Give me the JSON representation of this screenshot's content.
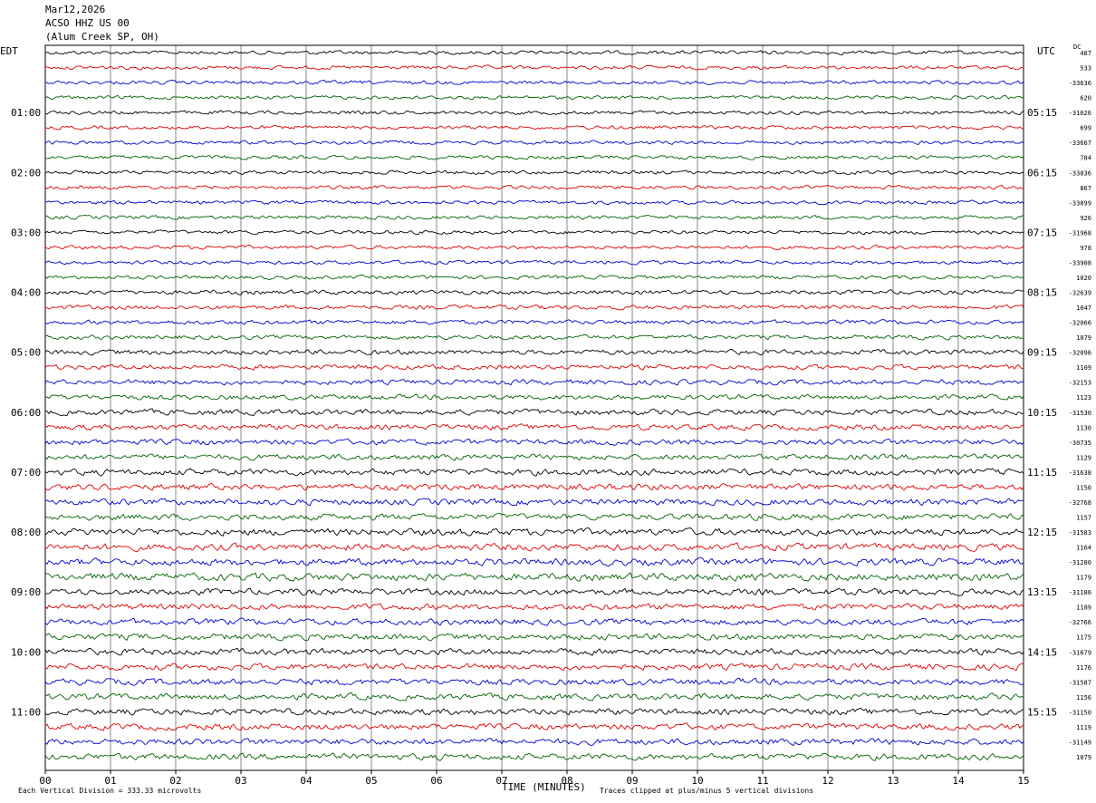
{
  "header": {
    "date": "Mar12,2026",
    "station": "ACSO HHZ US 00",
    "location": "(Alum Creek SP, OH)"
  },
  "chart_data": {
    "type": "line",
    "left_zone": "EDT",
    "right_zone": "UTC",
    "dc_label": "DC",
    "xlabel": "TIME (MINUTES)",
    "xlim": [
      0,
      15
    ],
    "x_ticks": [
      "00",
      "01",
      "02",
      "03",
      "04",
      "05",
      "06",
      "07",
      "08",
      "09",
      "10",
      "11",
      "12",
      "13",
      "14",
      "15"
    ],
    "left_hour_labels": [
      "01:00",
      "02:00",
      "03:00",
      "04:00",
      "05:00",
      "06:00",
      "07:00",
      "08:00",
      "09:00",
      "10:00",
      "11:00"
    ],
    "right_hour_labels": [
      "05:15",
      "06:15",
      "07:15",
      "08:15",
      "09:15",
      "10:15",
      "11:15",
      "12:15",
      "13:15",
      "14:15",
      "15:15"
    ],
    "trace_colors": [
      "#000000",
      "#e00000",
      "#0000d0",
      "#006400"
    ],
    "dc_offsets": [
      "487",
      "533",
      "-33636",
      "620",
      "-31626",
      "699",
      "-33667",
      "784",
      "-33836",
      "867",
      "-33899",
      "926",
      "-31968",
      "978",
      "-33908",
      "1020",
      "-32639",
      "1047",
      "-32066",
      "1079",
      "-32096",
      "1109",
      "-32153",
      "1123",
      "-31530",
      "1130",
      "-30735",
      "1129",
      "-31638",
      "1150",
      "-32768",
      "1157",
      "-31583",
      "1164",
      "-31280",
      "1179",
      "-31186",
      "1189",
      "-32766",
      "1175",
      "-31679",
      "1176",
      "-31587",
      "1156",
      "-31150",
      "1119",
      "-31149",
      "1079"
    ],
    "noise_levels": [
      3,
      3,
      3,
      3,
      3,
      3,
      3,
      3,
      3,
      3,
      3,
      3,
      3,
      3,
      3,
      3,
      3.5,
      3.5,
      3.5,
      3.5,
      4,
      4,
      4,
      4,
      4.5,
      4.5,
      4.5,
      4.5,
      5,
      5,
      5,
      5,
      5.5,
      5.5,
      5.5,
      6,
      5,
      5,
      5,
      5,
      5,
      5,
      5,
      5,
      5,
      5,
      5,
      5
    ],
    "footer_left": "Each Vertical Division =  333.33 microvolts",
    "footer_right": "Traces clipped at plus/minus 5 vertical divisions"
  }
}
